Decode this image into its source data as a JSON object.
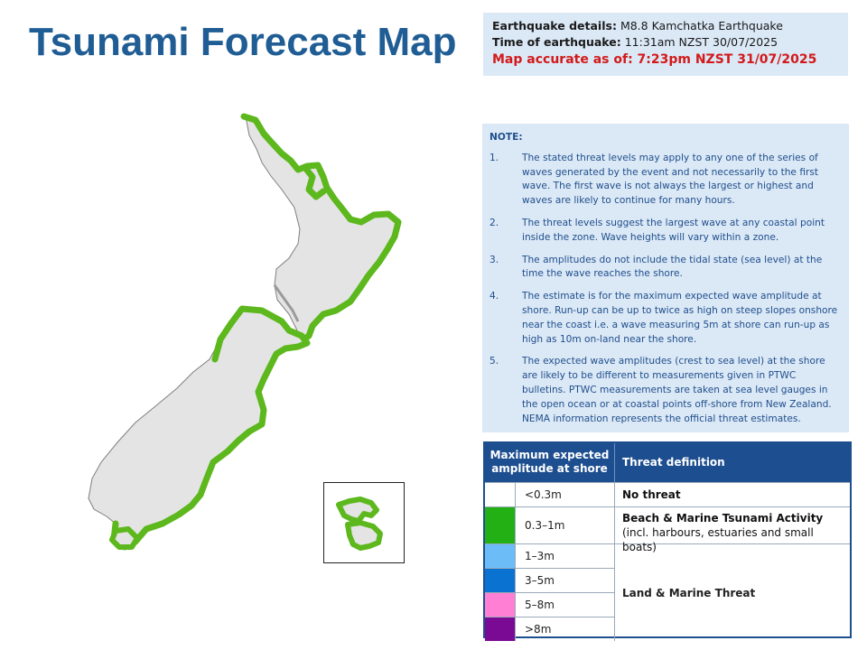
{
  "title": "Tsunami Forecast Map",
  "details": {
    "eq_label": "Earthquake details:",
    "eq_value": "M8.8 Kamchatka Earthquake",
    "time_label": "Time of earthquake:",
    "time_value": "11:31am NZST 30/07/2025",
    "accurate": "Map accurate as of: 7:23pm NZST 31/07/2025"
  },
  "note": {
    "title": "NOTE:",
    "items": [
      {
        "num": "1.",
        "text": "The stated threat levels may apply to any one of the series of waves generated by the event and not necessarily to the first wave. The first wave is not always the largest or highest and waves are likely to continue for many hours."
      },
      {
        "num": "2.",
        "text": "The threat levels suggest the largest wave at any coastal point inside the zone. Wave heights will vary within a zone."
      },
      {
        "num": "3.",
        "text": "The amplitudes do not include the tidal state (sea level) at the time the wave reaches the shore."
      },
      {
        "num": "4.",
        "text": "The estimate is for the maximum expected wave amplitude at shore. Run-up can be up to twice as high on steep slopes onshore near the coast i.e. a wave measuring 5m at shore can run-up as high as 10m on-land near the shore."
      },
      {
        "num": "5.",
        "text": "The expected wave amplitudes (crest to sea level) at the shore are likely to be different to measurements given in PTWC bulletins. PTWC measurements are taken at sea level gauges in the open ocean or at coastal points off-shore from New Zealand. NEMA information represents the official threat estimates."
      }
    ]
  },
  "legend": {
    "col1": "Maximum expected amplitude at shore",
    "col2": "Threat definition",
    "rows": [
      {
        "color": "#ffffff",
        "amplitude": "<0.3m"
      },
      {
        "color": "#22b014",
        "amplitude": "0.3–1m"
      },
      {
        "color": "#6cbdf7",
        "amplitude": "1–3m"
      },
      {
        "color": "#0a72d0",
        "amplitude": "3–5m"
      },
      {
        "color": "#ff7fd4",
        "amplitude": "5–8m"
      },
      {
        "color": "#7a0a93",
        "amplitude": ">8m"
      }
    ],
    "def_no_threat": "No threat",
    "def_beach_bold": "Beach & Marine Tsunami Activity",
    "def_beach_rest": " (incl. harbours, estuaries and small boats)",
    "def_land": "Land & Marine Threat"
  },
  "map": {
    "land_color": "#e4e4e4",
    "threat_color": "#5cb81c"
  }
}
